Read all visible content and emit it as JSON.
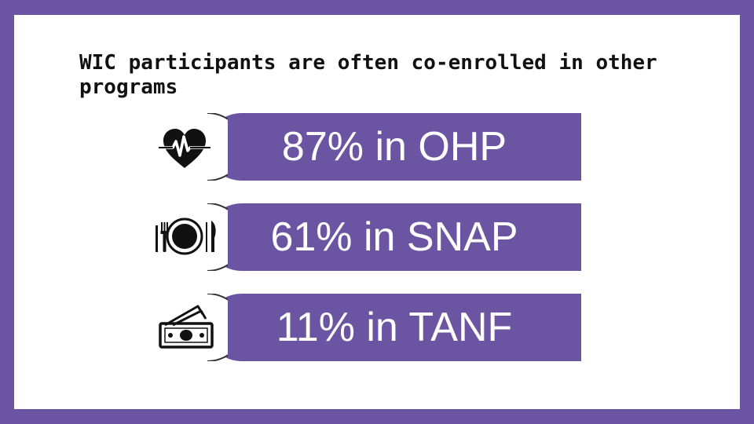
{
  "slide": {
    "title": "WIC participants are often co-enrolled in other programs",
    "colors": {
      "accent": "#6b55a3",
      "background": "#ffffff",
      "text": "#111111"
    },
    "rows": [
      {
        "icon": "heart-pulse-icon",
        "label": "87% in OHP"
      },
      {
        "icon": "plate-fork-knife-icon",
        "label": "61% in SNAP"
      },
      {
        "icon": "cash-money-icon",
        "label": "11% in TANF"
      }
    ]
  }
}
